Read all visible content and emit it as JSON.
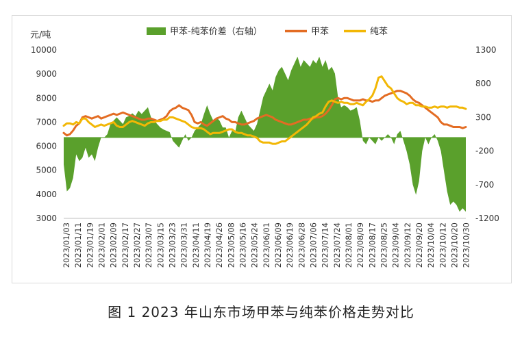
{
  "caption": "图 1  2023 年山东市场甲苯与纯苯价格走势对比",
  "chart_data": {
    "type": "line",
    "title": "",
    "left_unit_label": "元/吨",
    "left_axis": {
      "min": 3000,
      "max": 10000,
      "step": 1000,
      "ticks": [
        "3000",
        "4000",
        "5000",
        "6000",
        "7000",
        "8000",
        "9000",
        "10000"
      ]
    },
    "right_axis": {
      "min": -1200,
      "max": 1300,
      "step": 500,
      "ticks": [
        "-1200",
        "-700",
        "-200",
        "300",
        "800",
        "1300"
      ]
    },
    "x_tick_labels": [
      "2023/01/03",
      "2023/01/11",
      "2023/01/19",
      "2023/02/01",
      "2023/02/09",
      "2023/02/17",
      "2023/02/27",
      "2023/03/07",
      "2023/03/15",
      "2023/03/23",
      "2023/03/31",
      "2023/04/11",
      "2023/04/19",
      "2023/04/26",
      "2023/05/08",
      "2023/05/16",
      "2023/05/24",
      "2023/06/01",
      "2023/06/09",
      "2023/06/19",
      "2023/06/28",
      "2023/07/06",
      "2023/07/14",
      "2023/07/24",
      "2023/08/01",
      "2023/08/09",
      "2023/08/17",
      "2023/08/25",
      "2023/09/04",
      "2023/09/12",
      "2023/09/20",
      "2023/10/04",
      "2023/10/12",
      "2023/10/20",
      "2023/10/30"
    ],
    "legend_position": "top",
    "grid": false,
    "series": [
      {
        "name": "甲苯-纯苯价差（右轴）",
        "type": "area",
        "axis": "right",
        "color": "#5aa02c",
        "values": [
          -400,
          -800,
          -750,
          -600,
          -250,
          -350,
          -300,
          -150,
          -300,
          -250,
          -350,
          -150,
          0,
          0,
          50,
          200,
          250,
          300,
          250,
          200,
          300,
          320,
          360,
          320,
          400,
          350,
          400,
          450,
          300,
          250,
          200,
          150,
          120,
          100,
          80,
          -50,
          -100,
          -150,
          -50,
          50,
          -50,
          0,
          100,
          150,
          200,
          350,
          480,
          350,
          250,
          300,
          250,
          150,
          150,
          0,
          100,
          80,
          300,
          400,
          300,
          200,
          150,
          100,
          200,
          400,
          600,
          700,
          800,
          700,
          900,
          1000,
          1050,
          950,
          850,
          1000,
          1100,
          1200,
          1050,
          1150,
          1100,
          1050,
          1150,
          1100,
          1200,
          1050,
          1150,
          1000,
          1050,
          950,
          600,
          450,
          480,
          450,
          400,
          420,
          450,
          250,
          -50,
          -100,
          0,
          -50,
          -100,
          0,
          -50,
          0,
          50,
          0,
          -100,
          50,
          100,
          -50,
          -200,
          -400,
          -700,
          -850,
          -650,
          -200,
          0,
          -100,
          0,
          50,
          -50,
          -200,
          -500,
          -800,
          -1000,
          -950,
          -1000,
          -1100,
          -1050,
          -1100
        ]
      },
      {
        "name": "甲苯",
        "type": "line",
        "axis": "left",
        "color": "#e36c23",
        "values": [
          6550,
          6450,
          6500,
          6650,
          6850,
          6950,
          7200,
          7250,
          7200,
          7150,
          7200,
          7250,
          7150,
          7200,
          7250,
          7300,
          7350,
          7300,
          7350,
          7400,
          7350,
          7300,
          7250,
          7200,
          7150,
          7100,
          7100,
          7150,
          7150,
          7100,
          7050,
          7100,
          7150,
          7250,
          7450,
          7550,
          7600,
          7700,
          7600,
          7550,
          7500,
          7300,
          7000,
          6950,
          7000,
          6900,
          6850,
          6950,
          7050,
          7150,
          7200,
          7250,
          7150,
          7100,
          7000,
          7000,
          6950,
          6900,
          6900,
          6950,
          7000,
          7050,
          7150,
          7200,
          7250,
          7300,
          7250,
          7200,
          7100,
          7050,
          7000,
          6950,
          6900,
          6900,
          6950,
          7000,
          7050,
          7100,
          7100,
          7150,
          7150,
          7200,
          7200,
          7250,
          7350,
          7500,
          7700,
          7950,
          8000,
          7950,
          8000,
          8000,
          7950,
          7900,
          7900,
          7900,
          7950,
          7900,
          7900,
          7850,
          7900,
          7900,
          8000,
          8100,
          8150,
          8200,
          8250,
          8300,
          8300,
          8250,
          8200,
          8100,
          7950,
          7850,
          7800,
          7700,
          7600,
          7500,
          7400,
          7300,
          7200,
          7000,
          6900,
          6900,
          6850,
          6800,
          6800,
          6800,
          6750,
          6800
        ]
      },
      {
        "name": "纯苯",
        "type": "line",
        "axis": "left",
        "color": "#f2b705",
        "values": [
          6850,
          6950,
          6950,
          6900,
          7000,
          6950,
          7150,
          7150,
          7000,
          6900,
          6800,
          6850,
          6900,
          6850,
          6900,
          6950,
          7000,
          6850,
          6800,
          6800,
          6900,
          7000,
          7050,
          7000,
          6950,
          6900,
          6850,
          6950,
          7000,
          7000,
          7050,
          7050,
          7100,
          7100,
          7200,
          7200,
          7150,
          7100,
          7050,
          7000,
          6900,
          6800,
          6750,
          6750,
          6750,
          6700,
          6600,
          6500,
          6550,
          6550,
          6550,
          6600,
          6650,
          6700,
          6700,
          6600,
          6550,
          6550,
          6500,
          6450,
          6450,
          6400,
          6350,
          6200,
          6150,
          6150,
          6150,
          6100,
          6100,
          6150,
          6200,
          6200,
          6300,
          6400,
          6500,
          6600,
          6700,
          6800,
          6900,
          7050,
          7200,
          7250,
          7350,
          7400,
          7650,
          7850,
          7900,
          7850,
          7800,
          7850,
          7800,
          7800,
          7750,
          7750,
          7800,
          7750,
          7700,
          7850,
          7950,
          8100,
          8400,
          8850,
          8900,
          8700,
          8500,
          8400,
          8200,
          8000,
          7900,
          7850,
          7750,
          7800,
          7800,
          7700,
          7700,
          7650,
          7650,
          7600,
          7600,
          7650,
          7600,
          7650,
          7650,
          7600,
          7650,
          7650,
          7650,
          7600,
          7600,
          7550
        ]
      }
    ]
  }
}
